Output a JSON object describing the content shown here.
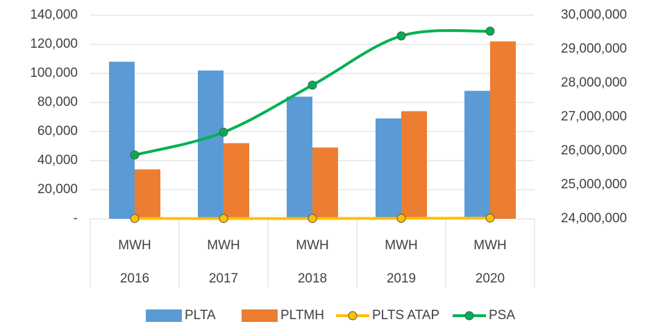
{
  "chart_data": {
    "type": "bar",
    "categories": [
      "MWH",
      "MWH",
      "MWH",
      "MWH",
      "MWH"
    ],
    "category_groups": [
      "2016",
      "2017",
      "2018",
      "2019",
      "2020"
    ],
    "series": [
      {
        "name": "PLTA",
        "type": "bar",
        "color": "#5b9bd5",
        "values": [
          108000,
          102000,
          84000,
          69000,
          88000
        ]
      },
      {
        "name": "PLTMH",
        "type": "bar",
        "color": "#ed7d31",
        "values": [
          34000,
          52000,
          49000,
          74000,
          122000
        ]
      },
      {
        "name": "PLTS ATAP",
        "type": "line",
        "color": "#ffc000",
        "values": [
          200,
          200,
          200,
          300,
          500
        ]
      },
      {
        "name": "PSA",
        "type": "line",
        "color": "#00b050",
        "axis": "y2",
        "values": [
          25880000,
          26550000,
          27940000,
          29390000,
          29530000
        ]
      }
    ],
    "ylim": [
      0,
      140000
    ],
    "yticks": [
      {
        "value": 0,
        "label": "-"
      },
      {
        "value": 20000,
        "label": "20,000"
      },
      {
        "value": 40000,
        "label": "40,000"
      },
      {
        "value": 60000,
        "label": "60,000"
      },
      {
        "value": 80000,
        "label": "80,000"
      },
      {
        "value": 100000,
        "label": "100,000"
      },
      {
        "value": 120000,
        "label": "120,000"
      },
      {
        "value": 140000,
        "label": "140,000"
      }
    ],
    "y2lim": [
      24000000,
      30000000
    ],
    "y2ticks": [
      {
        "value": 24000000,
        "label": "24,000,000"
      },
      {
        "value": 25000000,
        "label": "25,000,000"
      },
      {
        "value": 26000000,
        "label": "26,000,000"
      },
      {
        "value": 27000000,
        "label": "27,000,000"
      },
      {
        "value": 28000000,
        "label": "28,000,000"
      },
      {
        "value": 29000000,
        "label": "29,000,000"
      },
      {
        "value": 30000000,
        "label": "30,000,000"
      }
    ],
    "grid": true,
    "legend": "bottom"
  }
}
